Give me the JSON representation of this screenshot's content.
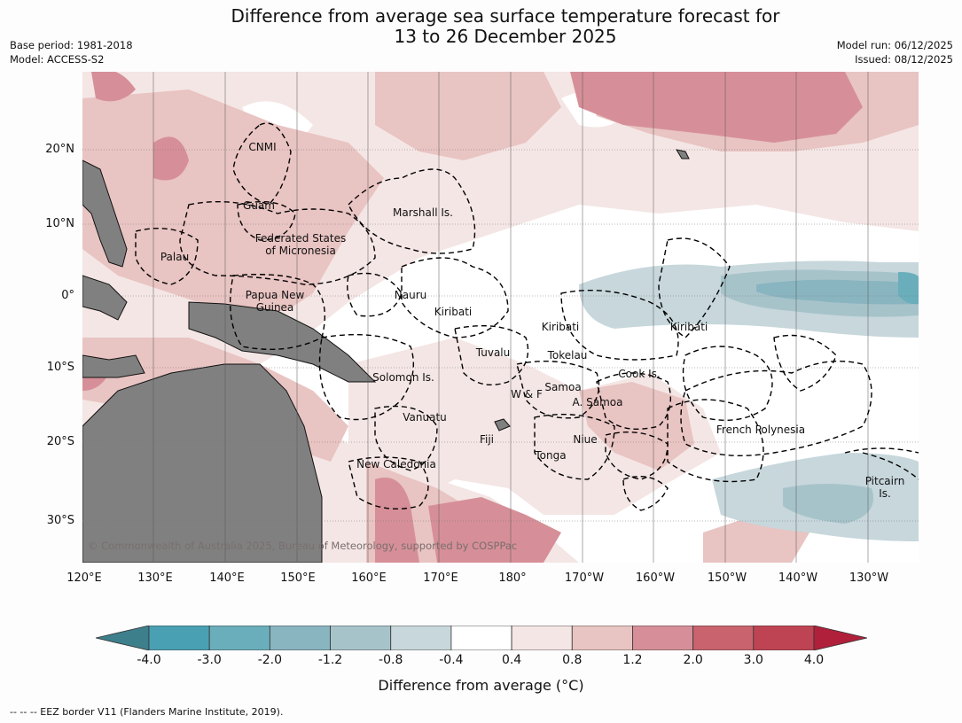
{
  "title": {
    "line1": "Difference from average sea surface temperature forecast for",
    "line2": "13 to 26 December 2025"
  },
  "meta": {
    "base_period": "Base period: 1981-2018",
    "model": "Model: ACCESS-S2",
    "model_run": "Model run: 06/12/2025",
    "issued": "Issued: 08/12/2025"
  },
  "map": {
    "lat_labels": [
      "20°N",
      "10°N",
      "0°",
      "10°S",
      "20°S",
      "30°S"
    ],
    "lon_labels": [
      "120°E",
      "130°E",
      "140°E",
      "150°E",
      "160°E",
      "170°E",
      "180°",
      "170°W",
      "160°W",
      "150°W",
      "140°W",
      "130°W"
    ],
    "region_labels": {
      "cnmi": "CNMI",
      "guam": "Guam",
      "marshall": "Marshall Is.",
      "micronesia_1": "Federated States",
      "micronesia_2": "of Micronesia",
      "palau": "Palau",
      "png_1": "Papua New",
      "png_2": "Guinea",
      "nauru": "Nauru",
      "kiribati_west": "Kiribati",
      "kiribati_central": "Kiribati",
      "kiribati_east": "Kiribati",
      "tuvalu": "Tuvalu",
      "tokelau": "Tokelau",
      "cook": "Cook Is.",
      "solomon": "Solomon Is.",
      "samoa": "Samoa",
      "wf": "W & F",
      "am_samoa": "A. Samoa",
      "vanuatu": "Vanuatu",
      "fiji": "Fiji",
      "niue": "Niue",
      "tonga": "Tonga",
      "french_polynesia": "French Polynesia",
      "new_caledonia": "New Caledonia",
      "pitcairn_1": "Pitcairn",
      "pitcairn_2": "Is."
    },
    "copyright": "© Commonwealth of Australia 2025, Bureau of Meteorology, supported by COSPPac"
  },
  "colorbar": {
    "ticks": [
      "-4.0",
      "-3.0",
      "-2.0",
      "-1.2",
      "-0.8",
      "-0.4",
      "0.4",
      "0.8",
      "1.2",
      "2.0",
      "3.0",
      "4.0"
    ],
    "colors": [
      "#3e7f8c",
      "#4aa0b3",
      "#6aaebb",
      "#89b5c0",
      "#a7c3ca",
      "#c7d7dc",
      "#ffffff",
      "#f4e6e5",
      "#e8c4c2",
      "#d68f98",
      "#c9636e",
      "#bf4453",
      "#b0203a"
    ],
    "label": "Difference from average ($^\\circ$C)",
    "label_display": "Difference from average (°C)"
  },
  "footnote": "--  --  -- EEZ border V11 (Flanders Marine Institute, 2019)."
}
